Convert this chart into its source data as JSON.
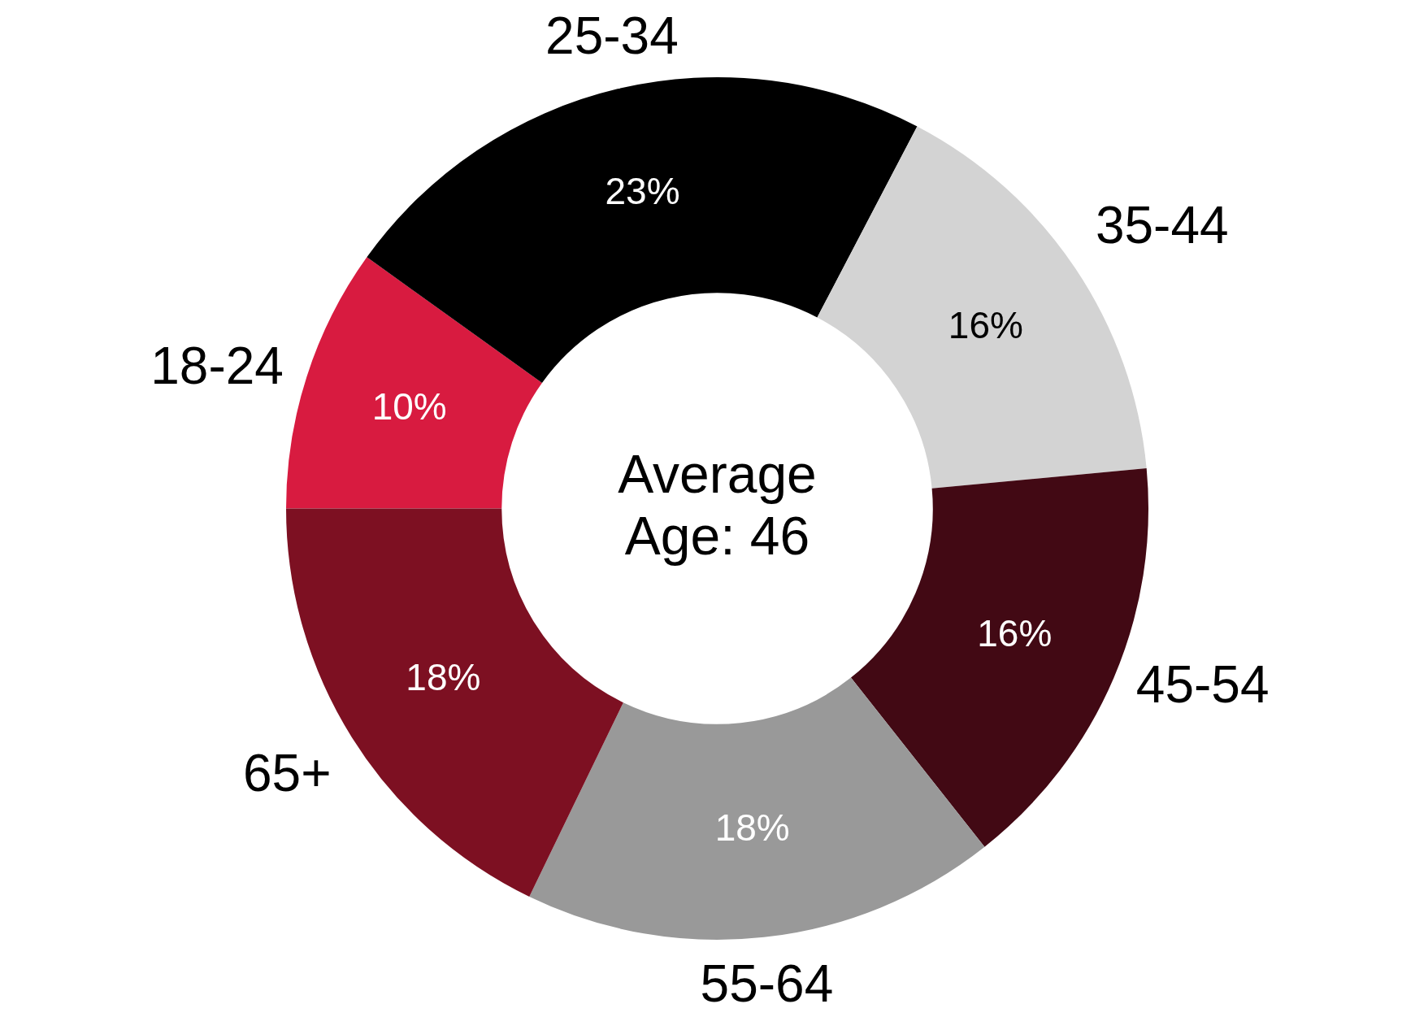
{
  "chart_data": {
    "type": "donut",
    "categories": [
      "18-24",
      "25-34",
      "35-44",
      "45-54",
      "55-64",
      "65+"
    ],
    "values": [
      10,
      23,
      16,
      16,
      18,
      18
    ],
    "value_labels": [
      "10%",
      "23%",
      "16%",
      "16%",
      "18%",
      "18%"
    ],
    "colors": [
      "#d81b40",
      "#000000",
      "#d3d3d3",
      "#420914",
      "#999999",
      "#7d1022"
    ],
    "annotations": [
      "Average Age: 46"
    ],
    "legend": false
  }
}
